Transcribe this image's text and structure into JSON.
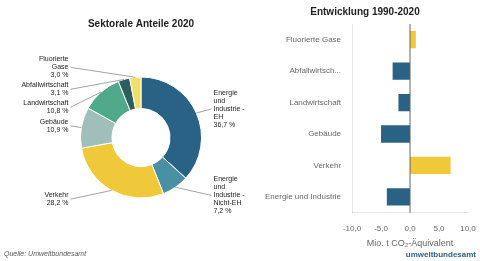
{
  "chart_data": [
    {
      "type": "doughnut",
      "title": "Sektorale Anteile 2020",
      "values": [
        36.7,
        7.2,
        28.2,
        10.9,
        10.8,
        3.1,
        3.0
      ],
      "value_labels": [
        "Energie\nund\nIndustrie -\nEH\n36,7 %",
        "Energie\nund\nIndustrie -\nNicht-EH\n7,2 %",
        "Verkehr\n28,2 %",
        "Gebäude\n10,9 %",
        "Landwirtschaft\n10,8 %",
        "Abfallwirtschaft\n3,1 %",
        "Fluorierte\nGase\n3,0 %"
      ],
      "colors": [
        "#2a6285",
        "#4a90a4",
        "#f0c93a",
        "#a0bfba",
        "#4fa98a",
        "#2e5f5f",
        "#f0e06a"
      ],
      "data_labels": true,
      "annotations": [
        "Quelle: Umweltbundesamt"
      ]
    },
    {
      "type": "bar",
      "orientation": "horizontal",
      "title": "Entwicklung 1990-2020",
      "categories": [
        "Fluorierte Gase",
        "Abfallwirtsch...",
        "Landwirtschaft",
        "Gebäude",
        "Verkehr",
        "Energie und Industrie"
      ],
      "values": [
        1.0,
        -3.0,
        -2.0,
        -5.0,
        7.0,
        -4.0
      ],
      "colors": [
        "#f0c93a",
        "#2a6285",
        "#2a6285",
        "#2a6285",
        "#f0c93a",
        "#2a6285"
      ],
      "xlabel": "Mio. t CO₂-Äquivalent",
      "xlim": [
        -10.0,
        10.0
      ],
      "xticks": [
        {
          "value": -10.0,
          "label": "-10,0"
        },
        {
          "value": -5.0,
          "label": "-5,0"
        },
        {
          "value": 0.0,
          "label": "0,0"
        },
        {
          "value": 5.0,
          "label": "5,0"
        },
        {
          "value": 10.0,
          "label": "10,0"
        }
      ],
      "grid": false,
      "annotations": [
        "umweltbundesamt"
      ]
    }
  ]
}
